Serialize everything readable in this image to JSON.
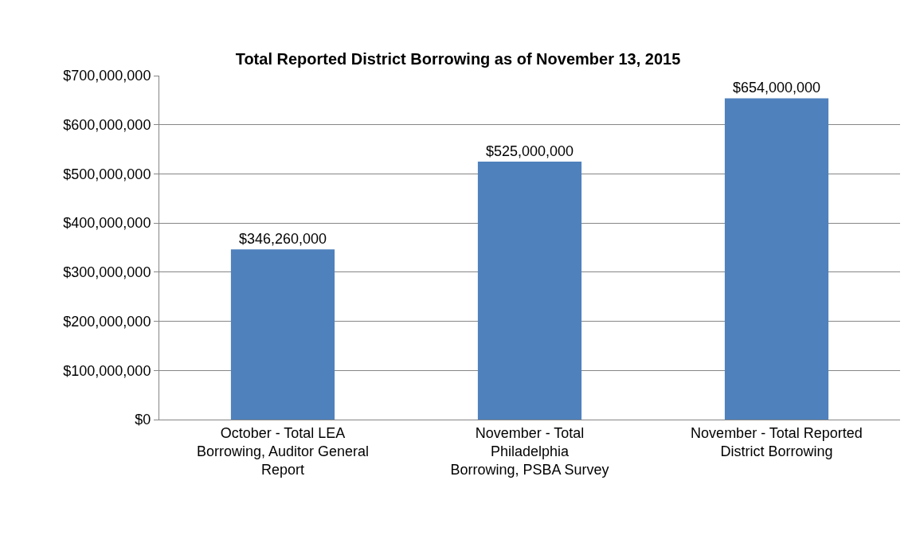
{
  "chart_data": {
    "type": "bar",
    "title": "Total Reported District Borrowing as of November 13, 2015",
    "categories": [
      "October - Total LEA\nBorrowing, Auditor General\nReport",
      "November - Total\nPhiladelphia\nBorrowing, PSBA Survey",
      "November - Total Reported\nDistrict Borrowing"
    ],
    "values": [
      346260000,
      525000000,
      654000000
    ],
    "value_labels": [
      "$346,260,000",
      "$525,000,000",
      "$654,000,000"
    ],
    "color": "#4f81bd",
    "ylim": [
      0,
      700000000
    ],
    "yticks": [
      {
        "value": 0,
        "label": "$0"
      },
      {
        "value": 100000000,
        "label": "$100,000,000"
      },
      {
        "value": 200000000,
        "label": "$200,000,000"
      },
      {
        "value": 300000000,
        "label": "$300,000,000"
      },
      {
        "value": 400000000,
        "label": "$400,000,000"
      },
      {
        "value": 500000000,
        "label": "$500,000,000"
      },
      {
        "value": 600000000,
        "label": "$600,000,000"
      },
      {
        "value": 700000000,
        "label": "$700,000,000"
      }
    ],
    "grid": "y"
  }
}
